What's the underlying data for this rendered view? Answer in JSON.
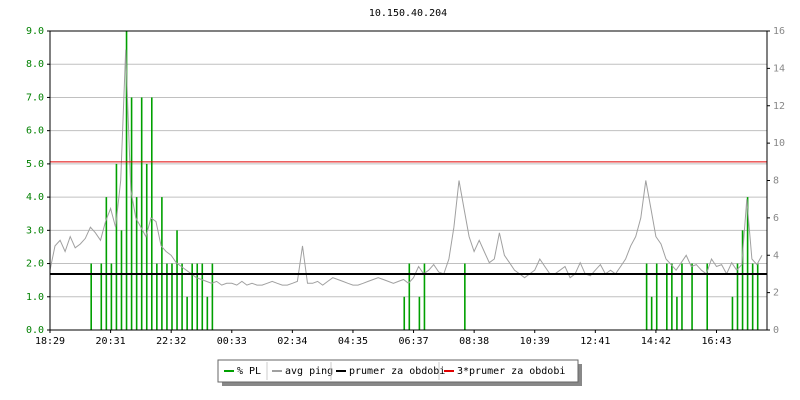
{
  "chart_data": {
    "type": "bar-line",
    "title": "10.150.40.204",
    "categories": [
      "18:29",
      null,
      null,
      null,
      null,
      null,
      null,
      null,
      null,
      null,
      null,
      null,
      "20:31",
      null,
      null,
      null,
      null,
      null,
      null,
      null,
      null,
      null,
      null,
      null,
      "22:32",
      null,
      null,
      null,
      null,
      null,
      null,
      null,
      null,
      null,
      null,
      null,
      "00:33",
      null,
      null,
      null,
      null,
      null,
      null,
      null,
      null,
      null,
      null,
      null,
      "02:34",
      null,
      null,
      null,
      null,
      null,
      null,
      null,
      null,
      null,
      null,
      null,
      "04:35",
      null,
      null,
      null,
      null,
      null,
      null,
      null,
      null,
      null,
      null,
      null,
      "06:37",
      null,
      null,
      null,
      null,
      null,
      null,
      null,
      null,
      null,
      null,
      null,
      "08:38",
      null,
      null,
      null,
      null,
      null,
      null,
      null,
      null,
      null,
      null,
      null,
      "10:39",
      null,
      null,
      null,
      null,
      null,
      null,
      null,
      null,
      null,
      null,
      null,
      "12:41",
      null,
      null,
      null,
      null,
      null,
      null,
      null,
      null,
      null,
      null,
      null,
      "14:42",
      null,
      null,
      null,
      null,
      null,
      null,
      null,
      null,
      null,
      null,
      null,
      "16:43",
      null,
      null,
      null,
      null,
      null,
      null,
      null,
      null,
      null
    ],
    "series": [
      {
        "name": "% PL",
        "color": "#00a000",
        "kind": "bar",
        "values": [
          0,
          0,
          0,
          0,
          0,
          0,
          0,
          0,
          2,
          0,
          2,
          4,
          2,
          5,
          3,
          9,
          7,
          4,
          7,
          5,
          7,
          2,
          4,
          2,
          2,
          3,
          2,
          1,
          2,
          2,
          2,
          1,
          2,
          0,
          0,
          0,
          0,
          0,
          0,
          0,
          0,
          0,
          0,
          0,
          0,
          0,
          0,
          0,
          0,
          0,
          0,
          0,
          0,
          0,
          0,
          0,
          0,
          0,
          0,
          0,
          0,
          0,
          0,
          0,
          0,
          0,
          0,
          0,
          0,
          0,
          1,
          2,
          0,
          1,
          2,
          0,
          0,
          0,
          0,
          0,
          0,
          0,
          2,
          0,
          0,
          0,
          0,
          0,
          0,
          0,
          0,
          0,
          0,
          0,
          0,
          0,
          0,
          0,
          0,
          0,
          0,
          0,
          0,
          0,
          0,
          0,
          0,
          0,
          0,
          0,
          0,
          0,
          0,
          0,
          0,
          0,
          0,
          0,
          2,
          1,
          2,
          0,
          2,
          2,
          1,
          2,
          0,
          2,
          0,
          0,
          2,
          0,
          0,
          0,
          0,
          1,
          2,
          3,
          4,
          2,
          2,
          0
        ]
      },
      {
        "name": "avg ping",
        "color": "#a0a0a0",
        "kind": "line",
        "axis": "y2",
        "values": [
          3.2,
          4.5,
          4.8,
          4.2,
          5.0,
          4.4,
          4.6,
          4.9,
          5.5,
          5.2,
          4.8,
          5.8,
          6.5,
          5.5,
          8.0,
          15.0,
          7.5,
          6.0,
          5.5,
          5.0,
          6.0,
          5.8,
          4.5,
          4.2,
          4.0,
          3.6,
          3.4,
          3.2,
          3.0,
          2.8,
          2.7,
          2.6,
          2.5,
          2.6,
          2.4,
          2.5,
          2.5,
          2.4,
          2.6,
          2.4,
          2.5,
          2.4,
          2.4,
          2.5,
          2.6,
          2.5,
          2.4,
          2.4,
          2.5,
          2.6,
          4.5,
          2.5,
          2.5,
          2.6,
          2.4,
          2.6,
          2.8,
          2.7,
          2.6,
          2.5,
          2.4,
          2.4,
          2.5,
          2.6,
          2.7,
          2.8,
          2.7,
          2.6,
          2.5,
          2.6,
          2.7,
          2.5,
          2.8,
          3.4,
          3.0,
          3.2,
          3.5,
          3.1,
          3.0,
          3.8,
          5.5,
          8.0,
          6.5,
          5.0,
          4.2,
          4.8,
          4.2,
          3.6,
          3.8,
          5.2,
          4.0,
          3.6,
          3.2,
          3.0,
          2.8,
          3.0,
          3.2,
          3.8,
          3.4,
          3.0,
          3.0,
          3.2,
          3.4,
          2.8,
          3.0,
          3.6,
          3.0,
          2.9,
          3.2,
          3.5,
          3.0,
          3.2,
          3.0,
          3.4,
          3.8,
          4.5,
          5.0,
          6.0,
          8.0,
          6.5,
          5.0,
          4.6,
          3.8,
          3.5,
          3.2,
          3.6,
          4.0,
          3.4,
          3.5,
          3.2,
          3.0,
          3.8,
          3.4,
          3.5,
          3.0,
          3.6,
          3.2,
          3.5,
          7.0,
          3.8,
          3.5,
          4.0
        ]
      },
      {
        "name": "prumer za obdobi",
        "color": "#000000",
        "kind": "hline",
        "axis": "y2",
        "value": 3.0
      },
      {
        "name": "3*prumer za obdobi",
        "color": "#e00000",
        "kind": "hline",
        "axis": "y2",
        "value": 9.0
      }
    ],
    "ylim": [
      0,
      9
    ],
    "yticks": [
      {
        "value": 0,
        "label": "0.0"
      },
      {
        "value": 1,
        "label": "1.0"
      },
      {
        "value": 2,
        "label": "2.0"
      },
      {
        "value": 3,
        "label": "3.0"
      },
      {
        "value": 4,
        "label": "4.0"
      },
      {
        "value": 5,
        "label": "5.0"
      },
      {
        "value": 6,
        "label": "6.0"
      },
      {
        "value": 7,
        "label": "7.0"
      },
      {
        "value": 8,
        "label": "8.0"
      },
      {
        "value": 9,
        "label": "9.0"
      }
    ],
    "y2lim": [
      0,
      16
    ],
    "y2ticks": [
      0,
      2,
      4,
      6,
      8,
      10,
      12,
      14,
      16
    ],
    "grid": true
  }
}
